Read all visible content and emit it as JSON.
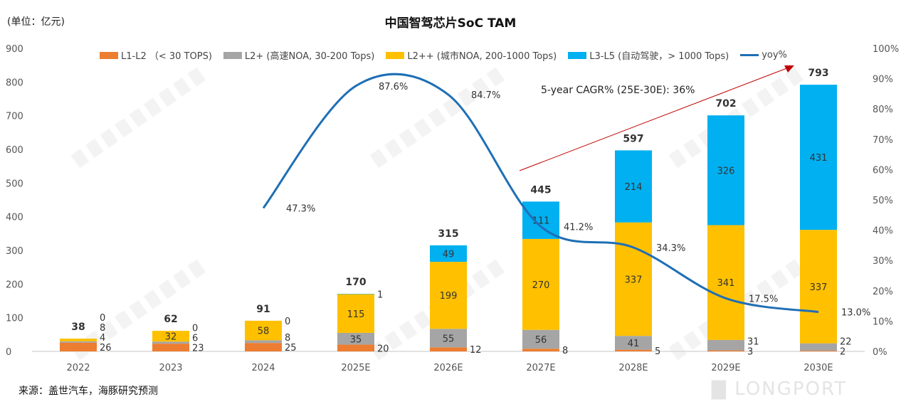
{
  "unit_label": "(单位：亿元)",
  "source": "来源：盖世汽车，海豚研究预测",
  "watermark": "DolphinResearch",
  "logo": "LONGPORT",
  "chart_data": {
    "type": "bar",
    "stacked": true,
    "title": "中国智驾芯片SoC TAM",
    "categories": [
      "2022",
      "2023",
      "2024",
      "2025E",
      "2026E",
      "2027E",
      "2028E",
      "2029E",
      "2030E"
    ],
    "series": [
      {
        "name": "L1-L2  （< 30 TOPS)",
        "color": "#ED7D31",
        "values": [
          26,
          23,
          25,
          20,
          12,
          8,
          5,
          3,
          2
        ]
      },
      {
        "name": "L2+ (高速NOA, 30-200 Tops)",
        "color": "#A5A5A5",
        "values": [
          4,
          6,
          8,
          35,
          55,
          56,
          41,
          31,
          22
        ]
      },
      {
        "name": "L2++ (城市NOA, 200-1000 Tops)",
        "color": "#FFC000",
        "values": [
          8,
          32,
          58,
          115,
          199,
          270,
          337,
          341,
          337
        ]
      },
      {
        "name": "L3-L5 (自动驾驶，> 1000 Tops)",
        "color": "#00B0F0",
        "values": [
          0,
          0,
          0,
          1,
          49,
          111,
          214,
          326,
          431
        ]
      }
    ],
    "totals": [
      38,
      62,
      91,
      170,
      315,
      445,
      597,
      702,
      793
    ],
    "line": {
      "name": "yoy%",
      "color": "#1F6FB5",
      "axis": "right",
      "values": [
        null,
        null,
        47.3,
        87.6,
        84.7,
        41.2,
        34.3,
        17.5,
        13.0
      ],
      "labels": [
        "",
        "",
        "47.3%",
        "87.6%",
        "84.7%",
        "41.2%",
        "34.3%",
        "17.5%",
        "13.0%"
      ]
    },
    "ylim": [
      0,
      900
    ],
    "yticks": [
      "0",
      "100",
      "200",
      "300",
      "400",
      "500",
      "600",
      "700",
      "800",
      "900"
    ],
    "y2lim": [
      0,
      100
    ],
    "y2ticks": [
      "0%",
      "10%",
      "20%",
      "30%",
      "40%",
      "50%",
      "60%",
      "70%",
      "80%",
      "90%",
      "100%"
    ],
    "annotation": {
      "text": "5-year CAGR% (25E-30E): 36%",
      "arrow_color": "#C00000"
    },
    "grid": false,
    "legend_placement": "top"
  }
}
